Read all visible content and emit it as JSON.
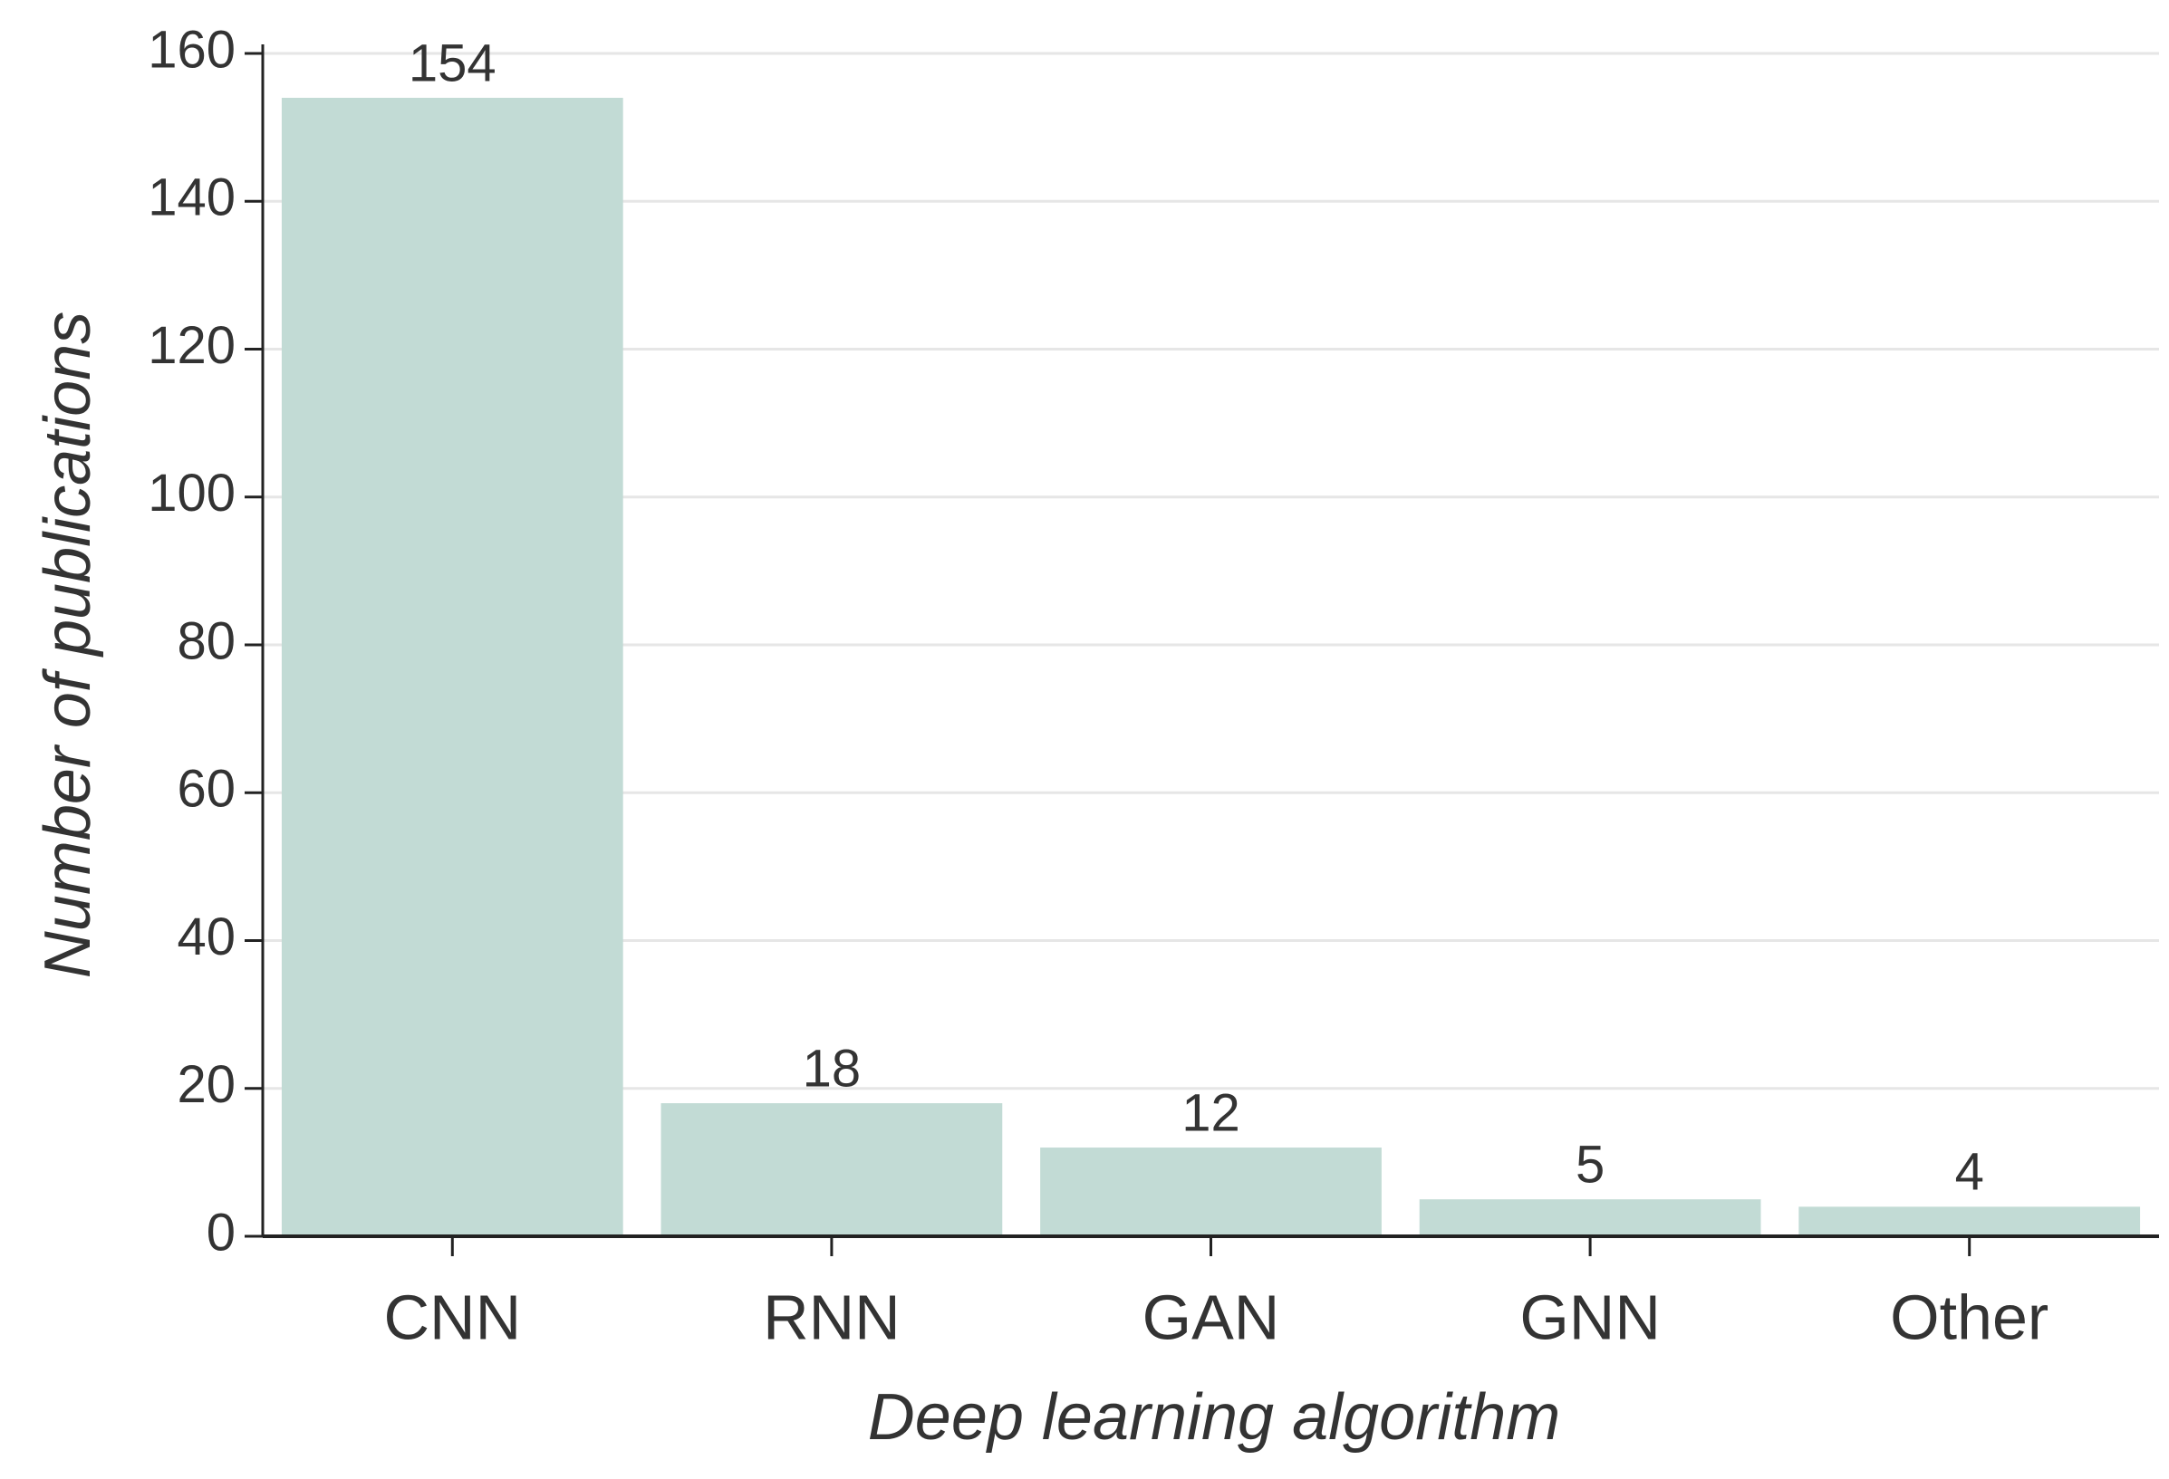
{
  "chart_data": {
    "type": "bar",
    "x_label": "Deep learning algorithm",
    "y_label": "Number of publications",
    "categories": [
      "CNN",
      "RNN",
      "GAN",
      "GNN",
      "Other"
    ],
    "values": [
      154,
      18,
      12,
      5,
      4
    ],
    "color": "#c2dbd5",
    "ylim": [
      0,
      160
    ],
    "yticks": [
      0,
      20,
      40,
      60,
      80,
      100,
      120,
      140,
      160
    ],
    "grid": true
  }
}
